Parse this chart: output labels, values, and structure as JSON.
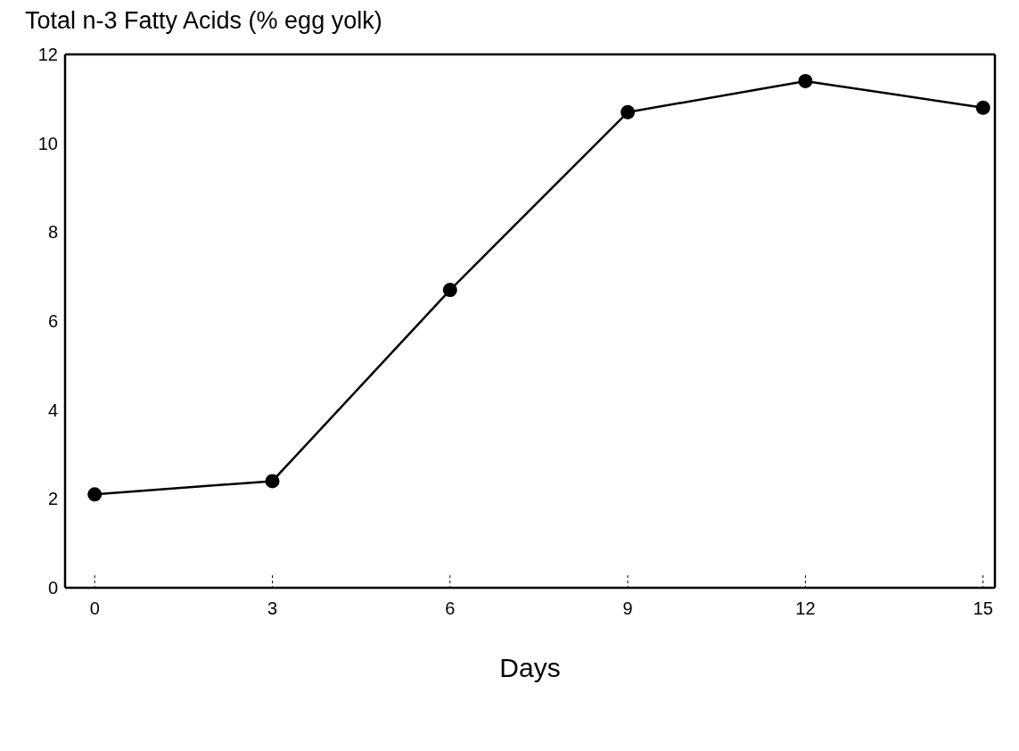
{
  "chart_data": {
    "type": "line",
    "title": "Total n-3 Fatty Acids (% egg yolk)",
    "xlabel": "Days",
    "x": [
      0,
      3,
      6,
      9,
      12,
      15
    ],
    "series": [
      {
        "color": "#000000",
        "values": [
          2.1,
          2.4,
          6.7,
          10.7,
          11.4,
          10.8
        ]
      }
    ],
    "xlim": [
      -0.5,
      15.2
    ],
    "xticks": [
      0,
      3,
      6,
      9,
      12,
      15
    ],
    "ylim": [
      0,
      12
    ],
    "yticks": [
      0,
      2,
      4,
      6,
      8,
      10,
      12
    ],
    "marker": "circle",
    "line_style": "solid",
    "grid": false
  }
}
